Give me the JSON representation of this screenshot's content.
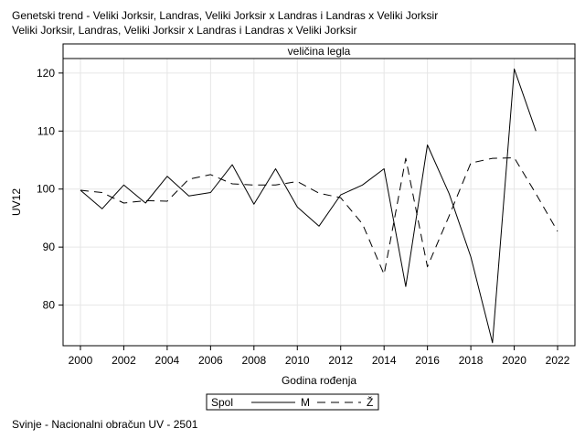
{
  "titles": {
    "line1": "Genetski trend - Veliki Jorksir, Landras, Veliki Jorksir x Landras i Landras x Veliki Jorksir",
    "line2": "Veliki Jorksir, Landras, Veliki Jorksir x Landras i Landras x Veliki Jorksir"
  },
  "footnote": "Svinje - Nacionalni obračun UV - 2501",
  "chart_data": {
    "type": "line",
    "panel_label": "veličina legla",
    "xlabel": "Godina rođenja",
    "ylabel": "UV12",
    "xlim": [
      1999.2,
      2022.8
    ],
    "ylim": [
      73,
      122.5
    ],
    "x_ticks": [
      2000,
      2002,
      2004,
      2006,
      2008,
      2010,
      2012,
      2014,
      2016,
      2018,
      2020,
      2022
    ],
    "y_ticks": [
      80,
      90,
      100,
      110,
      120
    ],
    "grid": true,
    "legend": {
      "title": "Spol",
      "placement": "bottom-center"
    },
    "series": [
      {
        "name": "M",
        "dash": "solid",
        "x": [
          2000,
          2001,
          2002,
          2003,
          2004,
          2005,
          2006,
          2007,
          2008,
          2009,
          2010,
          2011,
          2012,
          2013,
          2014,
          2015,
          2016,
          2017,
          2018,
          2019,
          2020,
          2021
        ],
        "values": [
          99.8,
          96.6,
          100.7,
          97.6,
          102.2,
          98.8,
          99.4,
          104.2,
          97.4,
          103.5,
          96.9,
          93.6,
          99.0,
          100.7,
          103.5,
          83.2,
          107.6,
          99.2,
          88.3,
          73.5,
          120.7,
          110.0
        ]
      },
      {
        "name": "Ž",
        "dash": "dashed",
        "x": [
          2000,
          2001,
          2002,
          2003,
          2004,
          2005,
          2006,
          2007,
          2008,
          2009,
          2010,
          2011,
          2012,
          2013,
          2014,
          2015,
          2016,
          2017,
          2018,
          2019,
          2020,
          2021,
          2022
        ],
        "values": [
          99.8,
          99.4,
          97.6,
          98.0,
          97.9,
          101.7,
          102.5,
          100.9,
          100.7,
          100.7,
          101.3,
          99.3,
          98.5,
          94.0,
          85.3,
          105.3,
          86.6,
          95.4,
          104.5,
          105.3,
          105.4,
          99.2,
          92.7
        ]
      }
    ]
  }
}
